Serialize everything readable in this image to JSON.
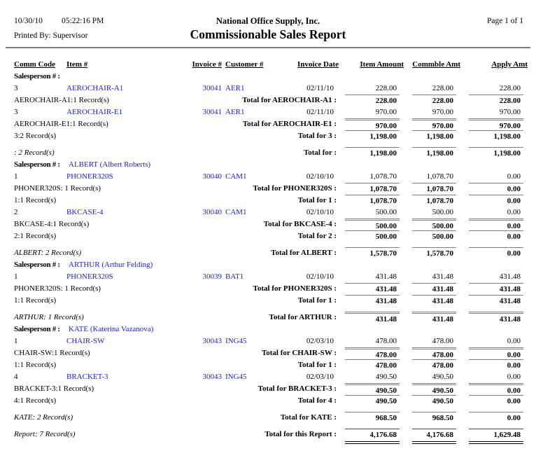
{
  "header": {
    "date": "10/30/10",
    "time": "05:22:16 PM",
    "company": "National Office Supply, Inc.",
    "page_label": "Page 1 of 1",
    "printed_by": "Printed By: Supervisor",
    "title": "Commissionable Sales Report"
  },
  "columns": {
    "comm_code": "Comm Code",
    "item": "Item #",
    "invoice": "Invoice #",
    "customer": "Customer #",
    "invoice_date": "Invoice Date",
    "item_amount": "Item Amount",
    "commble_amt": "Commble Amt",
    "apply_amt": "Apply Amt"
  },
  "colors": {
    "link_blue": "#2121CC",
    "rule_gray": "#828282"
  },
  "rows": [
    {
      "type": "group",
      "label": "Salesperson # :",
      "name": ""
    },
    {
      "type": "detail",
      "comm": "3",
      "item": "AEROCHAIR-A1",
      "invoice": "30041",
      "customer": "AER1",
      "date": "02/11/10",
      "amounts": [
        "228.00",
        "228.00",
        "228.00"
      ]
    },
    {
      "type": "total",
      "left": "AEROCHAIR-A1:1 Record(s)",
      "label": "Total for AEROCHAIR-A1 :",
      "amounts": [
        "228.00",
        "228.00",
        "228.00"
      ],
      "rule": "single"
    },
    {
      "type": "detail",
      "comm": "3",
      "item": "AEROCHAIR-E1",
      "invoice": "30041",
      "customer": "AER1",
      "date": "02/11/10",
      "amounts": [
        "970.00",
        "970.00",
        "970.00"
      ]
    },
    {
      "type": "total",
      "left": "AEROCHAIR-E1:1 Record(s)",
      "label": "Total for AEROCHAIR-E1 :",
      "amounts": [
        "970.00",
        "970.00",
        "970.00"
      ],
      "rule": "thick"
    },
    {
      "type": "total",
      "left": "3:2 Record(s)",
      "label": "Total for 3 :",
      "amounts": [
        "1,198.00",
        "1,198.00",
        "1,198.00"
      ],
      "rule": "single"
    },
    {
      "type": "total",
      "left": ": 2 Record(s)",
      "left_italic": true,
      "label": "Total for :",
      "amounts": [
        "1,198.00",
        "1,198.00",
        "1,198.00"
      ],
      "rule": "single",
      "spacer": true
    },
    {
      "type": "group",
      "label": "Salesperson # :",
      "name": "ALBERT (Albert Roberts)"
    },
    {
      "type": "detail",
      "comm": "1",
      "item": "PHONER320S",
      "invoice": "30040",
      "customer": "CAM1",
      "date": "02/10/10",
      "amounts": [
        "1,078.70",
        "1,078.70",
        "0.00"
      ]
    },
    {
      "type": "total",
      "left": "PHONER320S: 1 Record(s)",
      "label": "Total for PHONER320S :",
      "amounts": [
        "1,078.70",
        "1,078.70",
        "0.00"
      ],
      "rule": "single"
    },
    {
      "type": "total",
      "left": "1:1 Record(s)",
      "label": "Total for 1 :",
      "amounts": [
        "1,078.70",
        "1,078.70",
        "0.00"
      ],
      "rule": "single"
    },
    {
      "type": "detail",
      "comm": "2",
      "item": "BKCASE-4",
      "invoice": "30040",
      "customer": "CAM1",
      "date": "02/10/10",
      "amounts": [
        "500.00",
        "500.00",
        "0.00"
      ]
    },
    {
      "type": "total",
      "left": "BKCASE-4:1 Record(s)",
      "label": "Total for BKCASE-4 :",
      "amounts": [
        "500.00",
        "500.00",
        "0.00"
      ],
      "rule": "thick"
    },
    {
      "type": "total",
      "left": "2:1 Record(s)",
      "label": "Total for 2 :",
      "amounts": [
        "500.00",
        "500.00",
        "0.00"
      ],
      "rule": "single"
    },
    {
      "type": "total",
      "left": "ALBERT: 2 Record(s)",
      "left_italic": true,
      "label": "Total for ALBERT :",
      "amounts": [
        "1,578.70",
        "1,578.70",
        "0.00"
      ],
      "rule": "single",
      "spacer": true
    },
    {
      "type": "group",
      "label": "Salesperson # :",
      "name": "ARTHUR (Arthur Felding)"
    },
    {
      "type": "detail",
      "comm": "1",
      "item": "PHONER320S",
      "invoice": "30039",
      "customer": "BAT1",
      "date": "02/10/10",
      "amounts": [
        "431.48",
        "431.48",
        "431.48"
      ]
    },
    {
      "type": "total",
      "left": "PHONER320S: 1 Record(s)",
      "label": "Total for PHONER320S :",
      "amounts": [
        "431.48",
        "431.48",
        "431.48"
      ],
      "rule": "single"
    },
    {
      "type": "total",
      "left": "1:1 Record(s)",
      "label": "Total for 1 :",
      "amounts": [
        "431.48",
        "431.48",
        "431.48"
      ],
      "rule": "single"
    },
    {
      "type": "total",
      "left": "ARTHUR: 1 Record(s)",
      "left_italic": true,
      "label": "Total for ARTHUR :",
      "amounts": [
        "431.48",
        "431.48",
        "431.48"
      ],
      "rule": "thick",
      "spacer": true
    },
    {
      "type": "group",
      "label": "Salesperson # :",
      "name": "KATE (Katerina Vazanova)"
    },
    {
      "type": "detail",
      "comm": "1",
      "item": "CHAIR-SW",
      "invoice": "30043",
      "customer": "ING45",
      "date": "02/03/10",
      "amounts": [
        "478.00",
        "478.00",
        "0.00"
      ]
    },
    {
      "type": "total",
      "left": "CHAIR-SW:1 Record(s)",
      "label": "Total for CHAIR-SW :",
      "amounts": [
        "478.00",
        "478.00",
        "0.00"
      ],
      "rule": "thick"
    },
    {
      "type": "total",
      "left": "1:1 Record(s)",
      "label": "Total for 1 :",
      "amounts": [
        "478.00",
        "478.00",
        "0.00"
      ],
      "rule": "single"
    },
    {
      "type": "detail",
      "comm": "4",
      "item": "BRACKET-3",
      "invoice": "30043",
      "customer": "ING45",
      "date": "02/03/10",
      "amounts": [
        "490.50",
        "490.50",
        "0.00"
      ]
    },
    {
      "type": "total",
      "left": "BRACKET-3:1 Record(s)",
      "label": "Total for BRACKET-3 :",
      "amounts": [
        "490.50",
        "490.50",
        "0.00"
      ],
      "rule": "thick"
    },
    {
      "type": "total",
      "left": "4:1 Record(s)",
      "label": "Total for 4 :",
      "amounts": [
        "490.50",
        "490.50",
        "0.00"
      ],
      "rule": "single"
    },
    {
      "type": "total",
      "left": "KATE: 2 Record(s)",
      "left_italic": true,
      "label": "Total for KATE :",
      "amounts": [
        "968.50",
        "968.50",
        "0.00"
      ],
      "rule": "single",
      "spacer": true
    },
    {
      "type": "total",
      "left": "Report: 7 Record(s)",
      "left_italic": true,
      "label": "Total for this Report :",
      "amounts": [
        "4,176.68",
        "4,176.68",
        "1,629.48"
      ],
      "rule": "single",
      "grand": true,
      "spacer": true
    }
  ]
}
